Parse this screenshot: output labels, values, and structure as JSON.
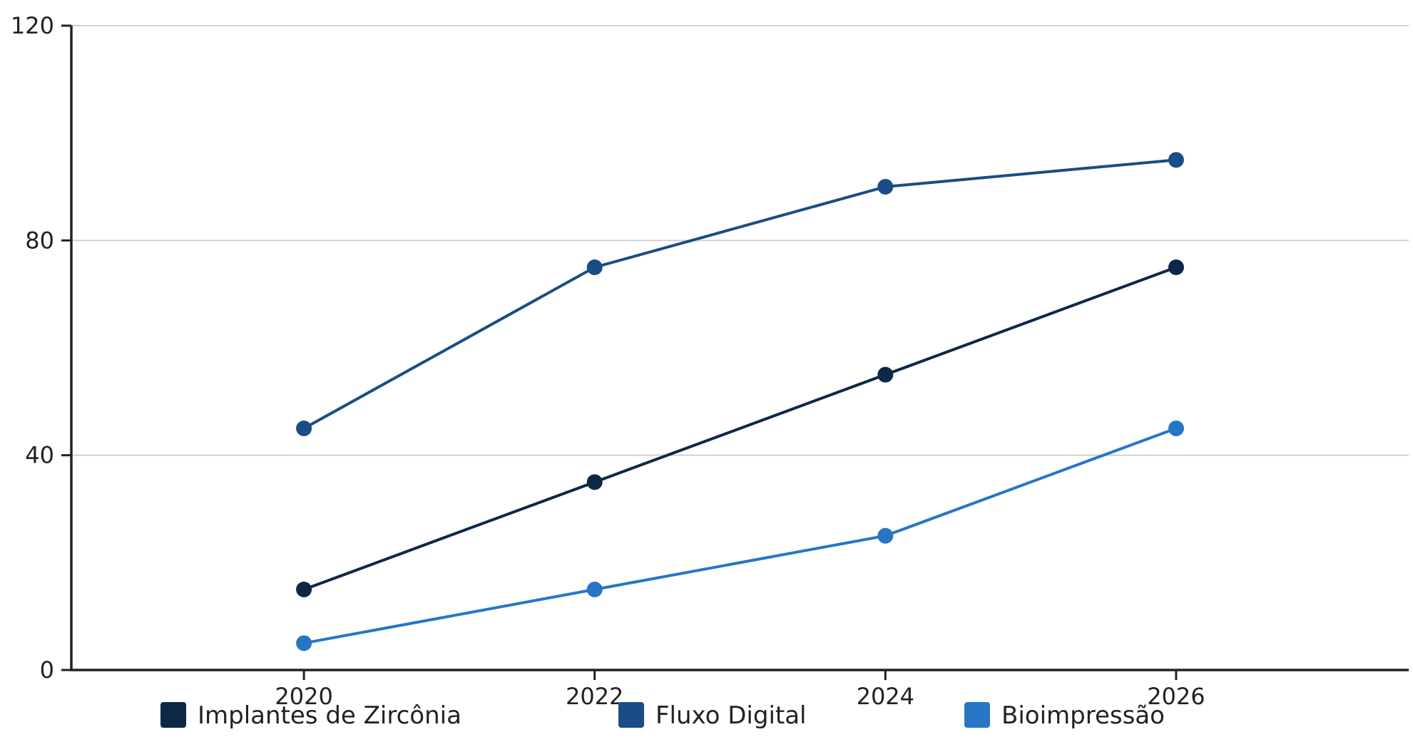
{
  "chart_data": {
    "type": "line",
    "x": [
      2020,
      2022,
      2024,
      2026
    ],
    "xticks": [
      "2020",
      "2022",
      "2024",
      "2026"
    ],
    "xlim": [
      2018.4,
      2027.6
    ],
    "ylim": [
      0,
      120
    ],
    "yticks": [
      "0",
      "40",
      "80",
      "120"
    ],
    "grid": true,
    "legend_position": "bottom",
    "series": [
      {
        "name": "Implantes de Zircônia",
        "color": "#0d2847",
        "values": [
          15,
          35,
          55,
          75
        ]
      },
      {
        "name": "Fluxo Digital",
        "color": "#1a4d85",
        "values": [
          45,
          75,
          90,
          95
        ]
      },
      {
        "name": "Bioimpressão",
        "color": "#2776c6",
        "values": [
          5,
          15,
          25,
          45
        ]
      }
    ]
  }
}
